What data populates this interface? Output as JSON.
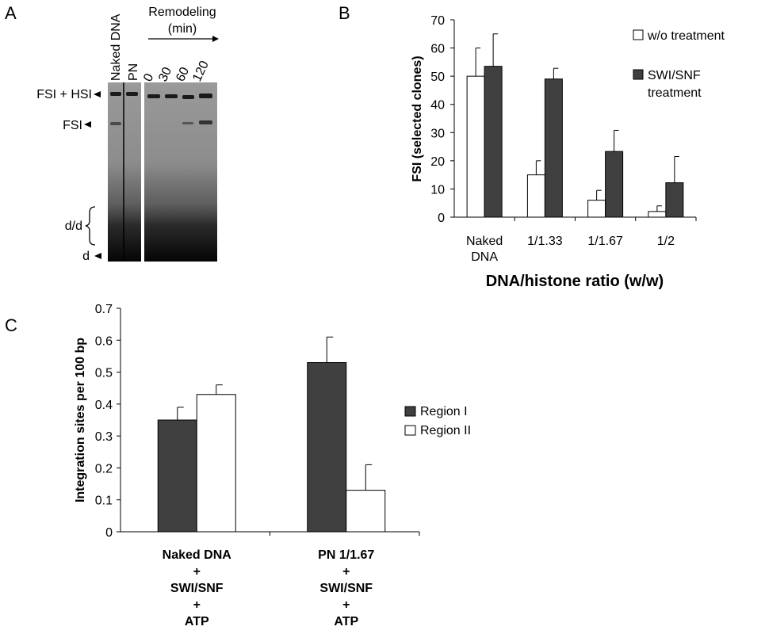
{
  "panels": {
    "a": {
      "letter": "A",
      "lane_labels": [
        "Naked DNA",
        "PN",
        "0",
        "30",
        "60",
        "120"
      ],
      "remodeling_label_line1": "Remodeling",
      "remodeling_label_line2": "(min)",
      "band_labels": {
        "fsi_hsi": "FSI + HSI",
        "fsi": "FSI",
        "dd": "d/d",
        "d": "d"
      }
    },
    "b": {
      "letter": "B"
    },
    "c": {
      "letter": "C"
    }
  },
  "chart_data": [
    {
      "type": "bar",
      "panel": "B",
      "categories": [
        "Naked DNA",
        "1/1.33",
        "1/1.67",
        "1/2"
      ],
      "category_lines": [
        [
          "Naked",
          "DNA"
        ],
        [
          "1/1.33"
        ],
        [
          "1/1.67"
        ],
        [
          "1/2"
        ]
      ],
      "series": [
        {
          "name": "w/o treatment",
          "values": [
            50,
            15,
            6,
            2
          ],
          "errors": [
            10,
            5,
            3.5,
            2
          ],
          "color": "#ffffff"
        },
        {
          "name": "SWI/SNF treatment",
          "values": [
            53.5,
            49,
            23.3,
            12.2
          ],
          "errors": [
            11.5,
            3.8,
            7.5,
            9.3
          ],
          "color": "#404040"
        }
      ],
      "legend_lines": [
        [
          "w/o treatment"
        ],
        [
          "SWI/SNF",
          "treatment"
        ]
      ],
      "xlabel": "DNA/histone ratio (w/w)",
      "ylabel": "FSI (selected clones)",
      "ylim": [
        0,
        70
      ],
      "yticks": [
        0,
        10,
        20,
        30,
        40,
        50,
        60,
        70
      ],
      "grid": false,
      "legend_position": "right"
    },
    {
      "type": "bar",
      "panel": "C",
      "categories": [
        "Naked DNA + SWI/SNF + ATP",
        "PN 1/1.67 + SWI/SNF + ATP"
      ],
      "category_lines": [
        [
          "Naked DNA",
          "+",
          "SWI/SNF",
          "+",
          "ATP"
        ],
        [
          "PN 1/1.67",
          "+",
          "SWI/SNF",
          "+",
          "ATP"
        ]
      ],
      "series": [
        {
          "name": "Region I",
          "values": [
            0.35,
            0.53
          ],
          "errors": [
            0.04,
            0.08
          ],
          "color": "#404040"
        },
        {
          "name": "Region II",
          "values": [
            0.43,
            0.13
          ],
          "errors": [
            0.03,
            0.08
          ],
          "color": "#ffffff"
        }
      ],
      "xlabel": "",
      "ylabel": "Integration sites per 100 bp",
      "ylim": [
        0,
        0.7
      ],
      "yticks": [
        "0",
        "0.1",
        "0.2",
        "0.3",
        "0.4",
        "0.5",
        "0.6",
        "0.7"
      ],
      "grid": false,
      "legend_position": "right"
    }
  ]
}
